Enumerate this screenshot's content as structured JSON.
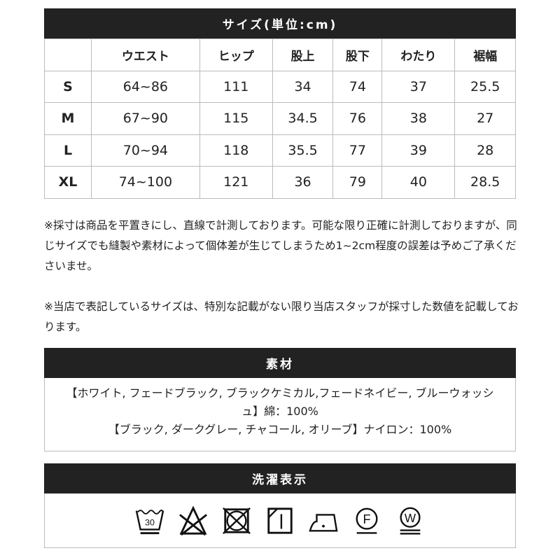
{
  "size_table": {
    "title": "サイズ(単位:cm)",
    "headers": [
      "",
      "ウエスト",
      "ヒップ",
      "股上",
      "股下",
      "わたり",
      "裾幅"
    ],
    "rows": [
      [
        "S",
        "64~86",
        "111",
        "34",
        "74",
        "37",
        "25.5"
      ],
      [
        "M",
        "67~90",
        "115",
        "34.5",
        "76",
        "38",
        "27"
      ],
      [
        "L",
        "70~94",
        "118",
        "35.5",
        "77",
        "39",
        "28"
      ],
      [
        "XL",
        "74~100",
        "121",
        "36",
        "79",
        "40",
        "28.5"
      ]
    ]
  },
  "notes": [
    "※採寸は商品を平置きにし、直線で計測しております。可能な限り正確に計測しておりますが、同じサイズでも縫製や素材によって個体差が生じてしまうため1~2cm程度の誤差は予めご了承くださいませ。",
    "※当店で表記しているサイズは、特別な記載がない限り当店スタッフが採寸した数値を記載しております。"
  ],
  "material": {
    "title": "素材",
    "lines": [
      "【ホワイト, フェードブラック, ブラックケミカル,フェードネイビー, ブルーウォッシュ】綿：100%",
      "【ブラック, ダークグレー, チャコール, オリーブ】ナイロン：100%"
    ]
  },
  "care": {
    "title": "洗濯表示",
    "wash_temp": "30",
    "icons": [
      "wash-30-icon",
      "no-bleach-icon",
      "no-tumble-dry-icon",
      "drip-dry-shade-icon",
      "iron-low-icon",
      "dry-clean-f-icon",
      "wet-clean-w-icon"
    ],
    "f_letter": "F",
    "w_letter": "W"
  }
}
